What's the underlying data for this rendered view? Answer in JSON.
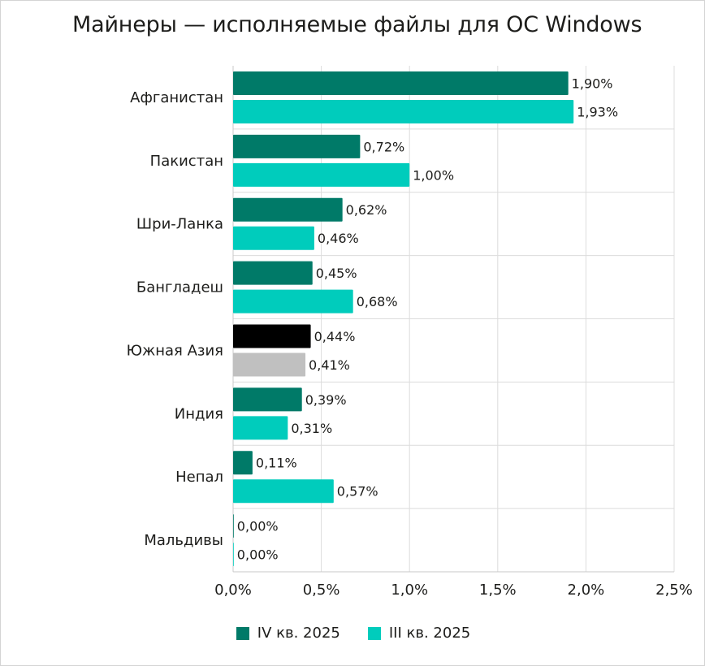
{
  "chart_data": {
    "type": "bar",
    "orientation": "horizontal",
    "title": "Майнеры — исполняемые файлы для ОС Windows",
    "categories": [
      "Афганистан",
      "Пакистан",
      "Шри-Ланка",
      "Бангладеш",
      "Южная Азия",
      "Индия",
      "Непал",
      "Мальдивы"
    ],
    "series": [
      {
        "name": "IV кв. 2025",
        "color": "#007a68",
        "values": [
          1.9,
          0.72,
          0.62,
          0.45,
          0.44,
          0.39,
          0.11,
          0.0
        ],
        "labels": [
          "1,90%",
          "0,72%",
          "0,62%",
          "0,45%",
          "0,44%",
          "0,39%",
          "0,11%",
          "0,00%"
        ]
      },
      {
        "name": "III кв. 2025",
        "color": "#00ccbc",
        "values": [
          1.93,
          1.0,
          0.46,
          0.68,
          0.41,
          0.31,
          0.57,
          0.0
        ],
        "labels": [
          "1,93%",
          "1,00%",
          "0,46%",
          "0,68%",
          "0,41%",
          "0,31%",
          "0,57%",
          "0,00%"
        ]
      }
    ],
    "highlight": {
      "category": "Южная Азия",
      "colors": [
        "#000000",
        "#c0c0c0"
      ]
    },
    "xlim": [
      0,
      2.5
    ],
    "ticks": [
      0,
      0.5,
      1.0,
      1.5,
      2.0,
      2.5
    ],
    "tick_labels": [
      "0,0%",
      "0,5%",
      "1,0%",
      "1,5%",
      "2,0%",
      "2,5%"
    ],
    "grid": true,
    "legend_position": "bottom"
  }
}
